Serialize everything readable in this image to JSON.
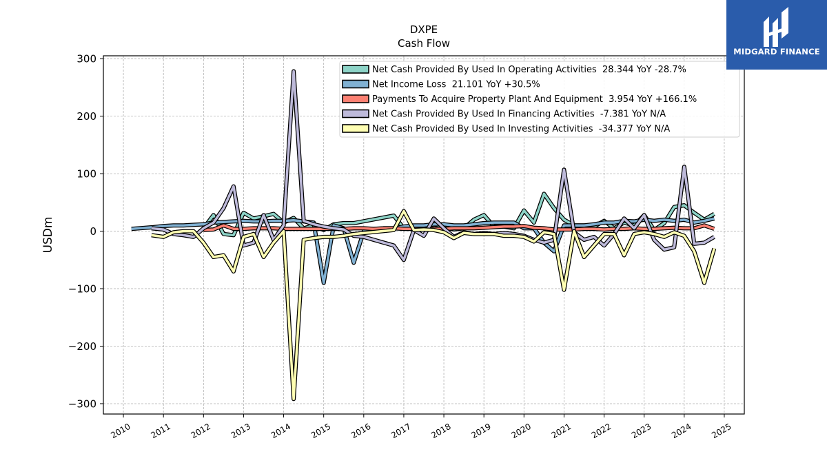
{
  "brand": {
    "name": "MIDGARD FINANCE",
    "bg_color": "#2a5cab"
  },
  "chart_data": {
    "type": "line",
    "title": "DXPE",
    "subtitle": "Cash Flow",
    "ylabel": "USDm",
    "xlabel": "",
    "ylim": [
      -318,
      305
    ],
    "xlim": [
      2009.5,
      2025.5
    ],
    "yticks": [
      -300,
      -200,
      -100,
      0,
      100,
      200,
      300
    ],
    "ytick_labels": [
      "−300",
      "−200",
      "−100",
      "0",
      "100",
      "200",
      "300"
    ],
    "xticks": [
      2010,
      2011,
      2012,
      2013,
      2014,
      2015,
      2016,
      2017,
      2018,
      2019,
      2020,
      2021,
      2022,
      2023,
      2024,
      2025
    ],
    "xtick_labels": [
      "2010",
      "2011",
      "2012",
      "2013",
      "2014",
      "2015",
      "2016",
      "2017",
      "2018",
      "2019",
      "2020",
      "2021",
      "2022",
      "2023",
      "2024",
      "2025"
    ],
    "grid": true,
    "legend_position": "top-right",
    "series": [
      {
        "name": "Net Cash Provided By Used In Operating Activities  28.344 YoY -28.7%",
        "color": "#8dd3c7",
        "points": [
          [
            2012,
            5
          ],
          [
            2012.25,
            28
          ],
          [
            2012.5,
            -5
          ],
          [
            2012.75,
            -7
          ],
          [
            2013,
            32
          ],
          [
            2013.25,
            22
          ],
          [
            2013.5,
            26
          ],
          [
            2013.75,
            30
          ],
          [
            2014,
            15
          ],
          [
            2014.25,
            23
          ],
          [
            2014.5,
            5
          ],
          [
            2014.75,
            10
          ],
          [
            2015,
            2
          ],
          [
            2015.25,
            12
          ],
          [
            2015.5,
            14
          ],
          [
            2015.75,
            14
          ],
          [
            2016.75,
            27
          ],
          [
            2017,
            5
          ],
          [
            2017.25,
            8
          ],
          [
            2017.5,
            5
          ],
          [
            2017.75,
            12
          ],
          [
            2018,
            7
          ],
          [
            2018.25,
            3
          ],
          [
            2018.5,
            5
          ],
          [
            2018.75,
            20
          ],
          [
            2019,
            28
          ],
          [
            2019.25,
            8
          ],
          [
            2019.5,
            8
          ],
          [
            2019.75,
            5
          ],
          [
            2020,
            36
          ],
          [
            2020.25,
            15
          ],
          [
            2020.5,
            65
          ],
          [
            2020.75,
            40
          ],
          [
            2021,
            20
          ],
          [
            2021.25,
            10
          ],
          [
            2021.5,
            10
          ],
          [
            2021.75,
            8
          ],
          [
            2022,
            18
          ],
          [
            2022.25,
            5
          ],
          [
            2022.5,
            15
          ],
          [
            2022.75,
            10
          ],
          [
            2023,
            28
          ],
          [
            2023.25,
            2
          ],
          [
            2023.5,
            14
          ],
          [
            2023.75,
            42
          ],
          [
            2024,
            45
          ],
          [
            2024.25,
            32
          ],
          [
            2024.5,
            20
          ],
          [
            2024.75,
            30
          ]
        ]
      },
      {
        "name": "Net Income Loss  21.101 YoY +30.5%",
        "color": "#80b1d3",
        "points": [
          [
            2010.2,
            4
          ],
          [
            2010.75,
            7
          ],
          [
            2011,
            9
          ],
          [
            2011.25,
            10
          ],
          [
            2011.5,
            10
          ],
          [
            2011.75,
            11
          ],
          [
            2012,
            12
          ],
          [
            2012.25,
            15
          ],
          [
            2012.5,
            16
          ],
          [
            2012.75,
            17
          ],
          [
            2013,
            18
          ],
          [
            2013.25,
            17
          ],
          [
            2013.5,
            17
          ],
          [
            2013.75,
            18
          ],
          [
            2014,
            18
          ],
          [
            2014.25,
            19
          ],
          [
            2014.5,
            17
          ],
          [
            2014.75,
            15
          ],
          [
            2015,
            -90
          ],
          [
            2015.25,
            10
          ],
          [
            2015.5,
            5
          ],
          [
            2015.75,
            -55
          ],
          [
            2016,
            0
          ],
          [
            2016.25,
            3
          ],
          [
            2016.5,
            5
          ],
          [
            2016.75,
            5
          ],
          [
            2017,
            8
          ],
          [
            2017.25,
            10
          ],
          [
            2017.5,
            10
          ],
          [
            2017.75,
            12
          ],
          [
            2018,
            12
          ],
          [
            2018.25,
            10
          ],
          [
            2018.5,
            10
          ],
          [
            2018.75,
            12
          ],
          [
            2019,
            14
          ],
          [
            2019.25,
            15
          ],
          [
            2019.5,
            15
          ],
          [
            2019.75,
            15
          ],
          [
            2020,
            5
          ],
          [
            2020.25,
            5
          ],
          [
            2020.5,
            -20
          ],
          [
            2020.75,
            -35
          ],
          [
            2021,
            10
          ],
          [
            2021.25,
            10
          ],
          [
            2021.5,
            10
          ],
          [
            2021.75,
            12
          ],
          [
            2022,
            15
          ],
          [
            2022.25,
            15
          ],
          [
            2022.5,
            18
          ],
          [
            2022.75,
            17
          ],
          [
            2023,
            20
          ],
          [
            2023.25,
            18
          ],
          [
            2023.5,
            20
          ],
          [
            2023.75,
            18
          ],
          [
            2024,
            20
          ],
          [
            2024.25,
            15
          ],
          [
            2024.5,
            18
          ],
          [
            2024.75,
            22
          ]
        ]
      },
      {
        "name": "Payments To Acquire Property Plant And Equipment  3.954 YoY +166.1%",
        "color": "#fb8072",
        "points": [
          [
            2012,
            2
          ],
          [
            2012.25,
            3
          ],
          [
            2012.5,
            10
          ],
          [
            2012.75,
            4
          ],
          [
            2013,
            4
          ],
          [
            2013.25,
            5
          ],
          [
            2013.5,
            5
          ],
          [
            2013.75,
            5
          ],
          [
            2014,
            4
          ],
          [
            2014.25,
            4
          ],
          [
            2014.5,
            4
          ],
          [
            2014.75,
            4
          ],
          [
            2015,
            4
          ],
          [
            2015.25,
            4
          ],
          [
            2015.5,
            4
          ],
          [
            2015.75,
            5
          ],
          [
            2016,
            5
          ],
          [
            2016.25,
            4
          ],
          [
            2016.5,
            5
          ],
          [
            2016.75,
            5
          ],
          [
            2017,
            4
          ],
          [
            2017.25,
            4
          ],
          [
            2017.5,
            4
          ],
          [
            2017.75,
            4
          ],
          [
            2018,
            4
          ],
          [
            2018.25,
            5
          ],
          [
            2018.5,
            5
          ],
          [
            2018.75,
            5
          ],
          [
            2019,
            6
          ],
          [
            2019.25,
            7
          ],
          [
            2019.5,
            8
          ],
          [
            2019.75,
            8
          ],
          [
            2020,
            9
          ],
          [
            2020.25,
            6
          ],
          [
            2020.5,
            5
          ],
          [
            2020.75,
            3
          ],
          [
            2021,
            3
          ],
          [
            2021.25,
            3
          ],
          [
            2021.5,
            4
          ],
          [
            2021.75,
            4
          ],
          [
            2022,
            3
          ],
          [
            2022.25,
            4
          ],
          [
            2022.5,
            4
          ],
          [
            2022.75,
            5
          ],
          [
            2023,
            4
          ],
          [
            2023.25,
            4
          ],
          [
            2023.5,
            5
          ],
          [
            2023.75,
            6
          ],
          [
            2024,
            5
          ],
          [
            2024.25,
            5
          ],
          [
            2024.5,
            10
          ],
          [
            2024.75,
            4
          ]
        ]
      },
      {
        "name": "Net Cash Provided By Used In Financing Activities  -7.381 YoY N/A",
        "color": "#bebada",
        "points": [
          [
            2010.7,
            5
          ],
          [
            2011,
            3
          ],
          [
            2011.25,
            -5
          ],
          [
            2011.5,
            -7
          ],
          [
            2011.75,
            -10
          ],
          [
            2012,
            5
          ],
          [
            2012.25,
            15
          ],
          [
            2012.5,
            40
          ],
          [
            2012.75,
            78
          ],
          [
            2013,
            -25
          ],
          [
            2013.25,
            -20
          ],
          [
            2013.5,
            28
          ],
          [
            2013.75,
            -15
          ],
          [
            2014,
            10
          ],
          [
            2014.25,
            278
          ],
          [
            2014.5,
            18
          ],
          [
            2014.75,
            12
          ],
          [
            2015,
            8
          ],
          [
            2015.25,
            5
          ],
          [
            2015.5,
            3
          ],
          [
            2015.75,
            -8
          ],
          [
            2016,
            -10
          ],
          [
            2016.25,
            -15
          ],
          [
            2016.5,
            -20
          ],
          [
            2016.75,
            -25
          ],
          [
            2017,
            -50
          ],
          [
            2017.25,
            2
          ],
          [
            2017.5,
            -8
          ],
          [
            2017.75,
            22
          ],
          [
            2018,
            5
          ],
          [
            2018.25,
            -10
          ],
          [
            2018.5,
            -2
          ],
          [
            2018.75,
            -5
          ],
          [
            2019,
            -3
          ],
          [
            2019.25,
            -5
          ],
          [
            2019.5,
            -3
          ],
          [
            2019.75,
            -5
          ],
          [
            2020,
            -8
          ],
          [
            2020.25,
            -15
          ],
          [
            2020.5,
            -20
          ],
          [
            2020.75,
            -15
          ],
          [
            2021,
            107
          ],
          [
            2021.25,
            -2
          ],
          [
            2021.5,
            -15
          ],
          [
            2021.75,
            -10
          ],
          [
            2022,
            -25
          ],
          [
            2022.25,
            -5
          ],
          [
            2022.5,
            22
          ],
          [
            2022.75,
            5
          ],
          [
            2023,
            28
          ],
          [
            2023.25,
            -15
          ],
          [
            2023.5,
            -32
          ],
          [
            2023.75,
            -28
          ],
          [
            2024,
            112
          ],
          [
            2024.25,
            -22
          ],
          [
            2024.5,
            -20
          ],
          [
            2024.75,
            -10
          ]
        ]
      },
      {
        "name": "Net Cash Provided By Used In Investing Activities  -34.377 YoY N/A",
        "color": "#ffffb3",
        "points": [
          [
            2010.7,
            -7
          ],
          [
            2011,
            -10
          ],
          [
            2011.25,
            -2
          ],
          [
            2011.5,
            0
          ],
          [
            2011.75,
            0
          ],
          [
            2012,
            -20
          ],
          [
            2012.25,
            -45
          ],
          [
            2012.5,
            -42
          ],
          [
            2012.75,
            -70
          ],
          [
            2013,
            -10
          ],
          [
            2013.25,
            -5
          ],
          [
            2013.5,
            -45
          ],
          [
            2013.75,
            -20
          ],
          [
            2014,
            0
          ],
          [
            2014.25,
            -292
          ],
          [
            2014.5,
            -15
          ],
          [
            2014.75,
            -12
          ],
          [
            2015,
            -10
          ],
          [
            2015.25,
            -10
          ],
          [
            2015.5,
            -8
          ],
          [
            2015.75,
            -5
          ],
          [
            2016.75,
            2
          ],
          [
            2017,
            35
          ],
          [
            2017.25,
            2
          ],
          [
            2017.5,
            3
          ],
          [
            2017.75,
            2
          ],
          [
            2018,
            -2
          ],
          [
            2018.25,
            -12
          ],
          [
            2018.5,
            -3
          ],
          [
            2018.75,
            -5
          ],
          [
            2019,
            -5
          ],
          [
            2019.25,
            -5
          ],
          [
            2019.5,
            -8
          ],
          [
            2019.75,
            -8
          ],
          [
            2020,
            -10
          ],
          [
            2020.25,
            -18
          ],
          [
            2020.5,
            -2
          ],
          [
            2020.75,
            -5
          ],
          [
            2021,
            -102
          ],
          [
            2021.25,
            0
          ],
          [
            2021.5,
            -45
          ],
          [
            2021.75,
            -25
          ],
          [
            2022,
            -5
          ],
          [
            2022.25,
            -5
          ],
          [
            2022.5,
            -42
          ],
          [
            2022.75,
            -5
          ],
          [
            2023,
            -2
          ],
          [
            2023.25,
            -5
          ],
          [
            2023.5,
            -10
          ],
          [
            2023.75,
            -2
          ],
          [
            2024,
            -8
          ],
          [
            2024.25,
            -35
          ],
          [
            2024.5,
            -90
          ],
          [
            2024.75,
            -30
          ]
        ]
      }
    ]
  }
}
